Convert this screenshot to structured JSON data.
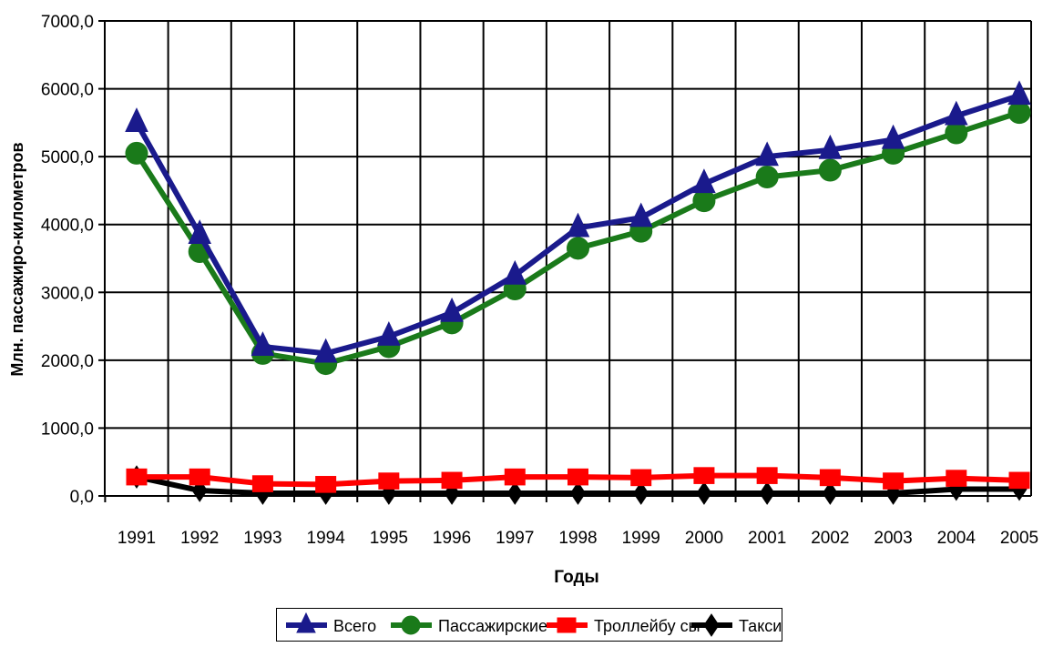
{
  "chart_data": {
    "type": "line",
    "xlabel": "Годы",
    "ylabel": "Млн. пассажиро-километров",
    "ylim": [
      0,
      7000
    ],
    "yticks": [
      "0,0",
      "1000,0",
      "2000,0",
      "3000,0",
      "4000,0",
      "5000,0",
      "6000,0",
      "7000,0"
    ],
    "categories": [
      "1991",
      "1992",
      "1993",
      "1994",
      "1995",
      "1996",
      "1997",
      "1998",
      "1999",
      "2000",
      "2001",
      "2002",
      "2003",
      "2004",
      "2005"
    ],
    "grid": true,
    "legend_position": "bottom",
    "series": [
      {
        "name": "Всего",
        "color": "#1a1a8c",
        "marker": "triangle",
        "values": [
          5500,
          3850,
          2200,
          2100,
          2350,
          2700,
          3250,
          3950,
          4100,
          4600,
          5000,
          5100,
          5250,
          5600,
          5900
        ]
      },
      {
        "name": "Пассажирские",
        "color": "#1a7a1a",
        "marker": "circle",
        "values": [
          5050,
          3600,
          2100,
          1950,
          2200,
          2550,
          3050,
          3650,
          3900,
          4350,
          4700,
          4800,
          5050,
          5350,
          5650
        ]
      },
      {
        "name": "Троллейбу сы",
        "color": "#ff0000",
        "marker": "square",
        "values": [
          280,
          280,
          180,
          170,
          220,
          230,
          280,
          280,
          270,
          300,
          300,
          270,
          220,
          260,
          230
        ]
      },
      {
        "name": "Такси",
        "color": "#000000",
        "marker": "diamond",
        "values": [
          280,
          80,
          40,
          40,
          40,
          40,
          40,
          40,
          40,
          40,
          40,
          40,
          40,
          100,
          100
        ]
      }
    ]
  }
}
